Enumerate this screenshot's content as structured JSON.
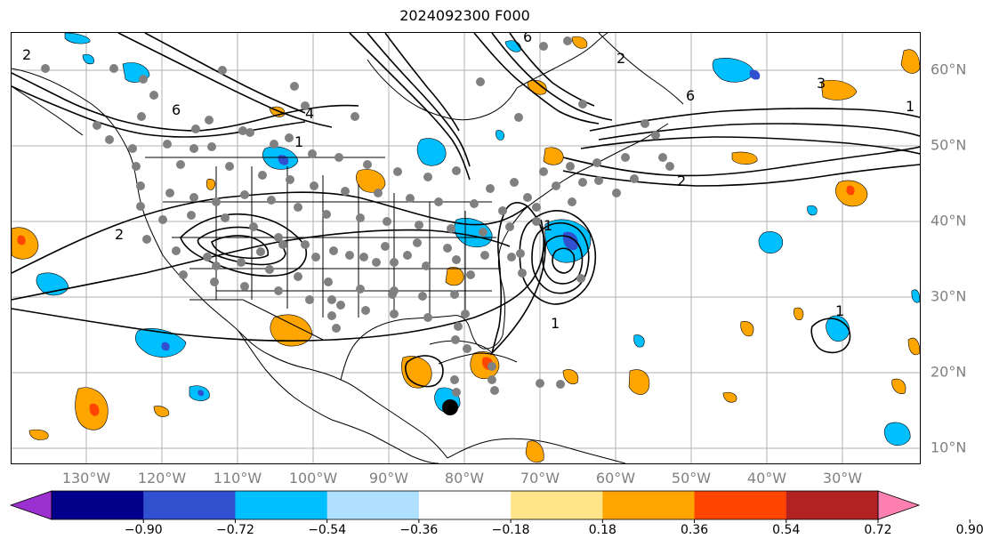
{
  "title": "2024092300 F000",
  "lon_labels": [
    "130°W",
    "120°W",
    "110°W",
    "100°W",
    "90°W",
    "80°W",
    "70°W",
    "60°W",
    "50°W",
    "40°W",
    "30°W"
  ],
  "lat_labels": [
    "60°N",
    "50°N",
    "40°N",
    "30°N",
    "20°N",
    "10°N"
  ],
  "colorbar": {
    "ticks": [
      "−0.90",
      "−0.72",
      "−0.54",
      "−0.36",
      "−0.18",
      "0.18",
      "0.36",
      "0.54",
      "0.72",
      "0.90"
    ],
    "colors": [
      "#9b30d0",
      "#00008b",
      "#3050d0",
      "#00bfff",
      "#b0e0ff",
      "#ffffff",
      "#ffe48a",
      "#ffa500",
      "#ff4500",
      "#b22222",
      "#ff80b0"
    ]
  },
  "contour_labels": [
    "2",
    "6",
    "4",
    "1",
    "2",
    "6",
    "3",
    "1",
    "6",
    "2",
    "1",
    "1",
    "1",
    "2"
  ],
  "colors": {
    "grid": "#b0b0b0",
    "coast": "#000000",
    "station": "#808080",
    "marker": "#000000"
  }
}
